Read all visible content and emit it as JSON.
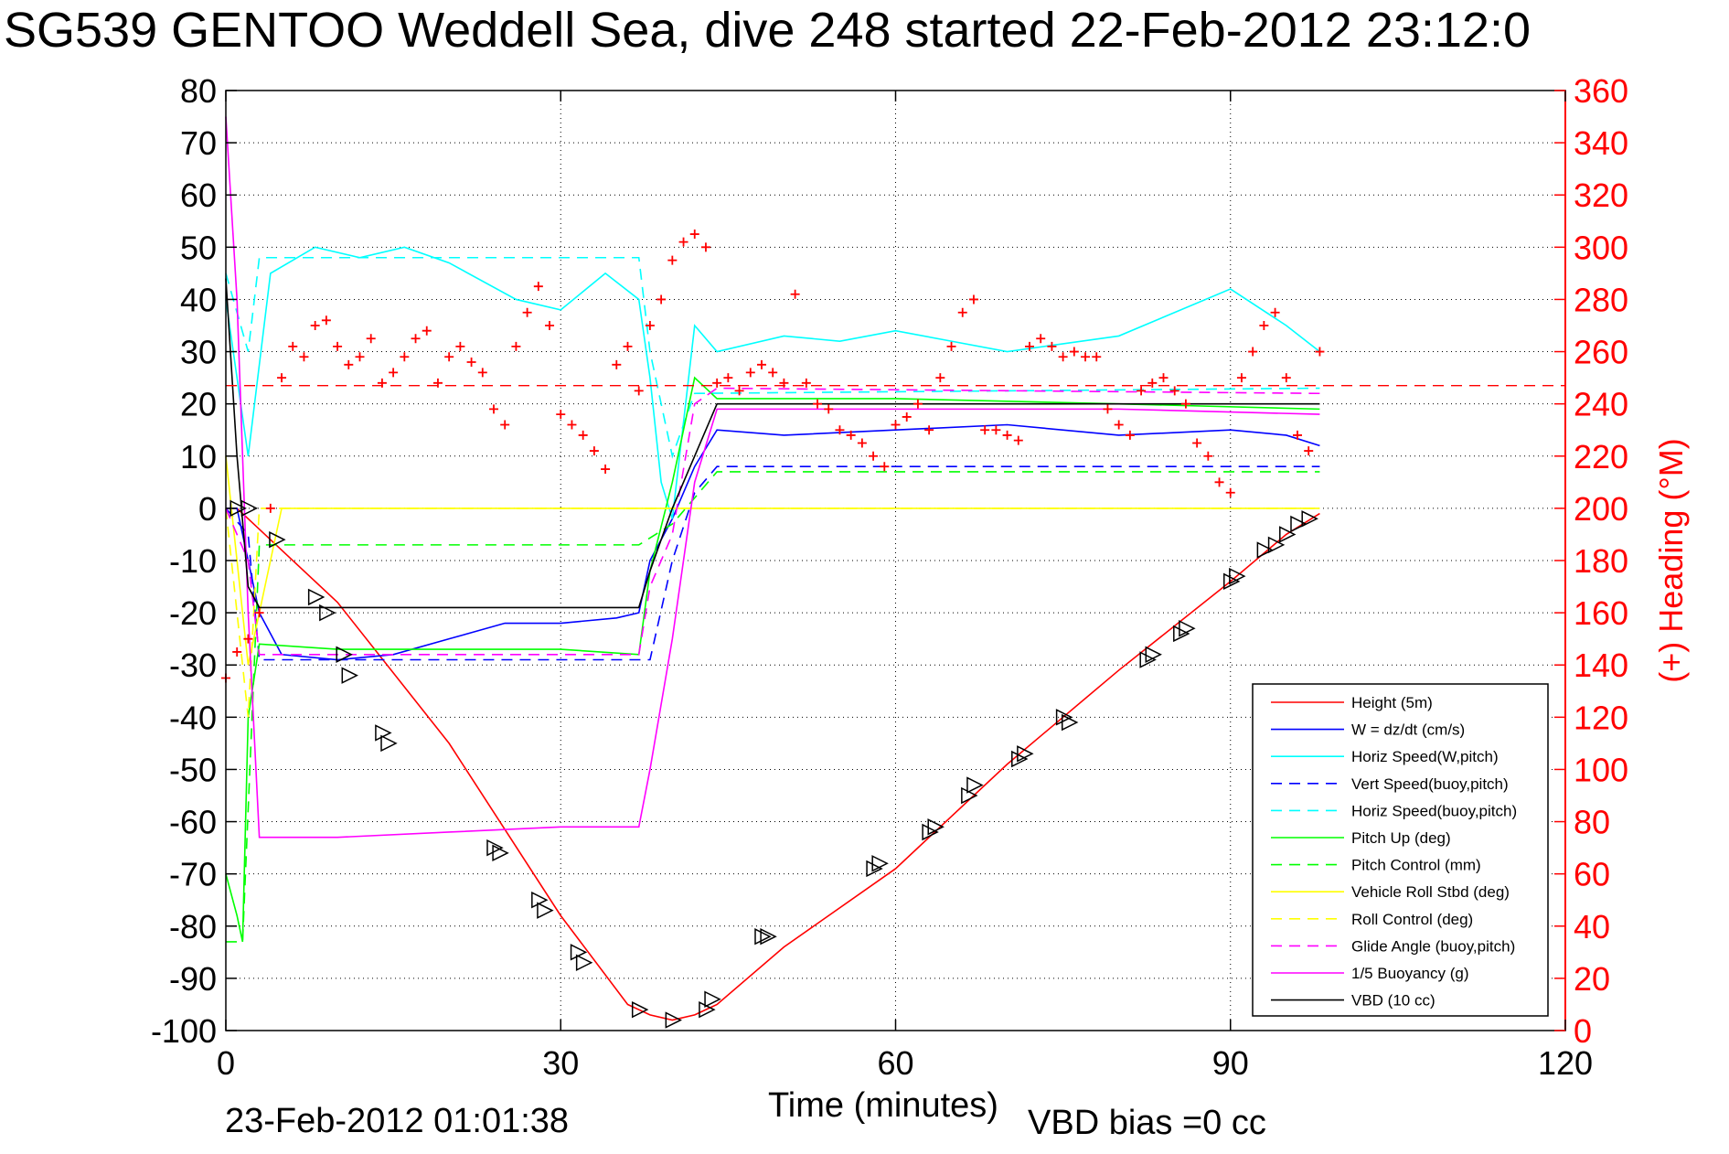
{
  "title": "SG539 GENTOO Weddell Sea, dive 248 started 22-Feb-2012 23:12:0",
  "footer": {
    "timestamp": "23-Feb-2012 01:01:38",
    "vbd_bias": "VBD bias =0 cc"
  },
  "chart_data": {
    "type": "line",
    "xlabel": "Time (minutes)",
    "ylabel": "",
    "ylabel_right": "(+) Heading (°M)",
    "xlim": [
      0,
      120
    ],
    "ylim": [
      -100,
      80
    ],
    "ylim_right": [
      0,
      360
    ],
    "x_ticks": [
      "0",
      "30",
      "60",
      "90",
      "120"
    ],
    "y_ticks": [
      "80",
      "70",
      "60",
      "50",
      "40",
      "30",
      "20",
      "10",
      "0",
      "-10",
      "-20",
      "-30",
      "-40",
      "-50",
      "-60",
      "-70",
      "-80",
      "-90",
      "-100"
    ],
    "y_right_ticks": [
      "360",
      "340",
      "320",
      "300",
      "280",
      "260",
      "240",
      "220",
      "200",
      "180",
      "160",
      "140",
      "120",
      "100",
      "80",
      "60",
      "40",
      "20",
      "0"
    ],
    "grid": true,
    "legend_position": "bottom-right",
    "colors": {
      "red": "#ff0000",
      "blue": "#0000ff",
      "cyan": "#00ffff",
      "green": "#00ff00",
      "yellow": "#ffff00",
      "magenta": "#ff00ff",
      "black": "#000000"
    },
    "series": [
      {
        "name": "Height (5m)",
        "color": "#ff0000",
        "style": "solid",
        "x": [
          0,
          1,
          2,
          4,
          10,
          20,
          30,
          36,
          38,
          40,
          42,
          44,
          50,
          60,
          70,
          80,
          90,
          95,
          98
        ],
        "y": [
          0,
          0,
          -2,
          -6,
          -18,
          -45,
          -78,
          -95,
          -97,
          -98,
          -97,
          -95,
          -84,
          -69,
          -49,
          -31,
          -14,
          -5,
          -1
        ]
      },
      {
        "name": "W = dz/dt (cm/s)",
        "color": "#0000ff",
        "style": "solid",
        "x": [
          0,
          1,
          2,
          3,
          5,
          10,
          15,
          20,
          25,
          30,
          35,
          37,
          38,
          40,
          42,
          44,
          50,
          60,
          70,
          80,
          90,
          95,
          98
        ],
        "y": [
          0,
          0,
          -10,
          -20,
          -28,
          -29,
          -28,
          -25,
          -22,
          -22,
          -21,
          -20,
          -10,
          -2,
          8,
          15,
          14,
          15,
          16,
          14,
          15,
          14,
          12
        ]
      },
      {
        "name": "Horiz Speed(W,pitch)",
        "color": "#00ffff",
        "style": "solid",
        "x": [
          0,
          2,
          4,
          8,
          12,
          16,
          20,
          26,
          30,
          34,
          37,
          38,
          39,
          40,
          42,
          44,
          50,
          55,
          60,
          65,
          70,
          80,
          90,
          95,
          98
        ],
        "y": [
          40,
          10,
          45,
          50,
          48,
          50,
          47,
          40,
          38,
          45,
          40,
          25,
          5,
          -2,
          35,
          30,
          33,
          32,
          34,
          32,
          30,
          33,
          42,
          35,
          30
        ]
      },
      {
        "name": "Vert Speed(buoy,pitch)",
        "color": "#0000ff",
        "style": "dashed",
        "x": [
          0,
          2,
          3,
          38,
          40,
          42,
          44,
          98
        ],
        "y": [
          0,
          -5,
          -29,
          -29,
          -10,
          3,
          8,
          8
        ]
      },
      {
        "name": "Horiz Speed(buoy,pitch)",
        "color": "#00ffff",
        "style": "dashed",
        "x": [
          0,
          2,
          3,
          37,
          38,
          40,
          42,
          98
        ],
        "y": [
          45,
          30,
          48,
          48,
          30,
          10,
          22,
          23
        ]
      },
      {
        "name": "Pitch Up (deg)",
        "color": "#00ff00",
        "style": "solid",
        "x": [
          0,
          1,
          1.5,
          2,
          3,
          10,
          20,
          30,
          37,
          38,
          40,
          42,
          44,
          60,
          80,
          98
        ],
        "y": [
          -70,
          -78,
          -83,
          -40,
          -26,
          -27,
          -27,
          -27,
          -28,
          -12,
          5,
          25,
          21,
          21,
          20,
          19
        ]
      },
      {
        "name": "Pitch Control (mm)",
        "color": "#00ff00",
        "style": "dashed",
        "x": [
          0,
          1.5,
          3,
          37,
          40,
          44,
          98
        ],
        "y": [
          -83,
          -83,
          -7,
          -7,
          -3,
          7,
          7
        ]
      },
      {
        "name": "Vehicle Roll Stbd (deg)",
        "color": "#ffff00",
        "style": "solid",
        "x": [
          0,
          2,
          5,
          10,
          15,
          20,
          25,
          30,
          35,
          40,
          45,
          50,
          55,
          60,
          65,
          70,
          75,
          80,
          85,
          90,
          95,
          98
        ],
        "y": [
          10,
          -30,
          0,
          0,
          0,
          0,
          0,
          0,
          0,
          0,
          0,
          0,
          0,
          0,
          0,
          0,
          0,
          0,
          0,
          0,
          0,
          0
        ]
      },
      {
        "name": "Roll Control (deg)",
        "color": "#ffff00",
        "style": "dashed",
        "x": [
          0,
          2,
          3,
          98
        ],
        "y": [
          0,
          -40,
          0,
          0
        ]
      },
      {
        "name": "Glide Angle (buoy,pitch)",
        "color": "#ff00ff",
        "style": "dashed",
        "x": [
          0,
          2,
          3,
          37,
          38,
          40,
          42,
          44,
          98
        ],
        "y": [
          0,
          -10,
          -28,
          -28,
          -15,
          -5,
          20,
          23,
          22
        ]
      },
      {
        "name": "1/5 Buoyancy (g)",
        "color": "#ff00ff",
        "style": "solid",
        "x": [
          0,
          1,
          2,
          3,
          4,
          10,
          20,
          30,
          37,
          38,
          40,
          42,
          44,
          60,
          80,
          98
        ],
        "y": [
          75,
          40,
          -20,
          -63,
          -63,
          -63,
          -62,
          -61,
          -61,
          -50,
          -25,
          5,
          19,
          19,
          19,
          18
        ]
      },
      {
        "name": "VBD (10 cc)",
        "color": "#000000",
        "style": "solid",
        "x": [
          0,
          1,
          2,
          3,
          37,
          38,
          40,
          42,
          44,
          98
        ],
        "y": [
          44,
          10,
          -15,
          -19,
          -19,
          -12,
          0,
          10,
          20,
          20
        ]
      }
    ],
    "heading": {
      "name": "(+) Heading",
      "color": "#ff0000",
      "marker": "+",
      "axis": "right",
      "ref_line_value": 247,
      "x": [
        0,
        1,
        2,
        3,
        4,
        5,
        6,
        7,
        8,
        9,
        10,
        11,
        12,
        13,
        14,
        15,
        16,
        17,
        18,
        19,
        20,
        21,
        22,
        23,
        24,
        25,
        26,
        27,
        28,
        29,
        30,
        31,
        32,
        33,
        34,
        35,
        36,
        37,
        38,
        39,
        40,
        41,
        42,
        43,
        44,
        45,
        46,
        47,
        48,
        49,
        50,
        51,
        52,
        53,
        54,
        55,
        56,
        57,
        58,
        59,
        60,
        61,
        62,
        63,
        64,
        65,
        66,
        67,
        68,
        69,
        70,
        71,
        72,
        73,
        74,
        75,
        76,
        77,
        78,
        79,
        80,
        81,
        82,
        83,
        84,
        85,
        86,
        87,
        88,
        89,
        90,
        91,
        92,
        93,
        94,
        95,
        96,
        97,
        98
      ],
      "y": [
        135,
        145,
        150,
        160,
        200,
        250,
        262,
        258,
        270,
        272,
        262,
        255,
        258,
        265,
        248,
        252,
        258,
        265,
        268,
        248,
        258,
        262,
        256,
        252,
        238,
        232,
        262,
        275,
        285,
        270,
        236,
        232,
        228,
        222,
        215,
        255,
        262,
        245,
        270,
        280,
        295,
        302,
        305,
        300,
        248,
        250,
        245,
        252,
        255,
        252,
        248,
        282,
        248,
        240,
        238,
        230,
        228,
        225,
        220,
        216,
        232,
        235,
        240,
        230,
        250,
        262,
        275,
        280,
        230,
        230,
        228,
        226,
        262,
        265,
        262,
        258,
        260,
        258,
        258,
        238,
        232,
        228,
        245,
        248,
        250,
        245,
        240,
        225,
        220,
        210,
        206,
        250,
        260,
        270,
        275,
        250,
        228,
        222,
        260
      ]
    },
    "markers": {
      "name": "VBD triangles",
      "color": "#000000",
      "x": [
        1,
        2,
        4.5,
        8,
        9,
        10.5,
        11,
        14,
        14.5,
        24,
        24.5,
        28,
        28.5,
        31.5,
        32,
        37,
        40,
        43,
        43.5,
        48,
        48.5,
        58,
        58.5,
        63,
        63.5,
        66.5,
        67,
        71,
        71.5,
        75,
        75.5,
        82.5,
        83,
        85.5,
        86,
        90,
        90.5,
        93,
        94,
        95,
        96,
        97
      ],
      "y": [
        0,
        0,
        -6,
        -17,
        -20,
        -28,
        -32,
        -43,
        -45,
        -65,
        -66,
        -75,
        -77,
        -85,
        -87,
        -96,
        -98,
        -96,
        -94,
        -82,
        -82,
        -69,
        -68,
        -62,
        -61,
        -55,
        -53,
        -48,
        -47,
        -40,
        -41,
        -29,
        -28,
        -24,
        -23,
        -14,
        -13,
        -8,
        -7,
        -5,
        -3,
        -2
      ]
    }
  },
  "legend": [
    {
      "label": "Height (5m)",
      "color": "#ff0000",
      "style": "solid"
    },
    {
      "label": "W = dz/dt (cm/s)",
      "color": "#0000ff",
      "style": "solid"
    },
    {
      "label": "Horiz Speed(W,pitch)",
      "color": "#00ffff",
      "style": "solid"
    },
    {
      "label": "Vert Speed(buoy,pitch)",
      "color": "#0000ff",
      "style": "dashed"
    },
    {
      "label": "Horiz Speed(buoy,pitch)",
      "color": "#00ffff",
      "style": "dashed"
    },
    {
      "label": "Pitch Up (deg)",
      "color": "#00ff00",
      "style": "solid"
    },
    {
      "label": "Pitch Control (mm)",
      "color": "#00ff00",
      "style": "dashed"
    },
    {
      "label": "Vehicle Roll Stbd (deg)",
      "color": "#ffff00",
      "style": "solid"
    },
    {
      "label": "Roll Control (deg)",
      "color": "#ffff00",
      "style": "dashed"
    },
    {
      "label": "Glide Angle (buoy,pitch)",
      "color": "#ff00ff",
      "style": "dashed"
    },
    {
      "label": "1/5 Buoyancy (g)",
      "color": "#ff00ff",
      "style": "solid"
    },
    {
      "label": "VBD (10 cc)",
      "color": "#000000",
      "style": "solid"
    }
  ]
}
